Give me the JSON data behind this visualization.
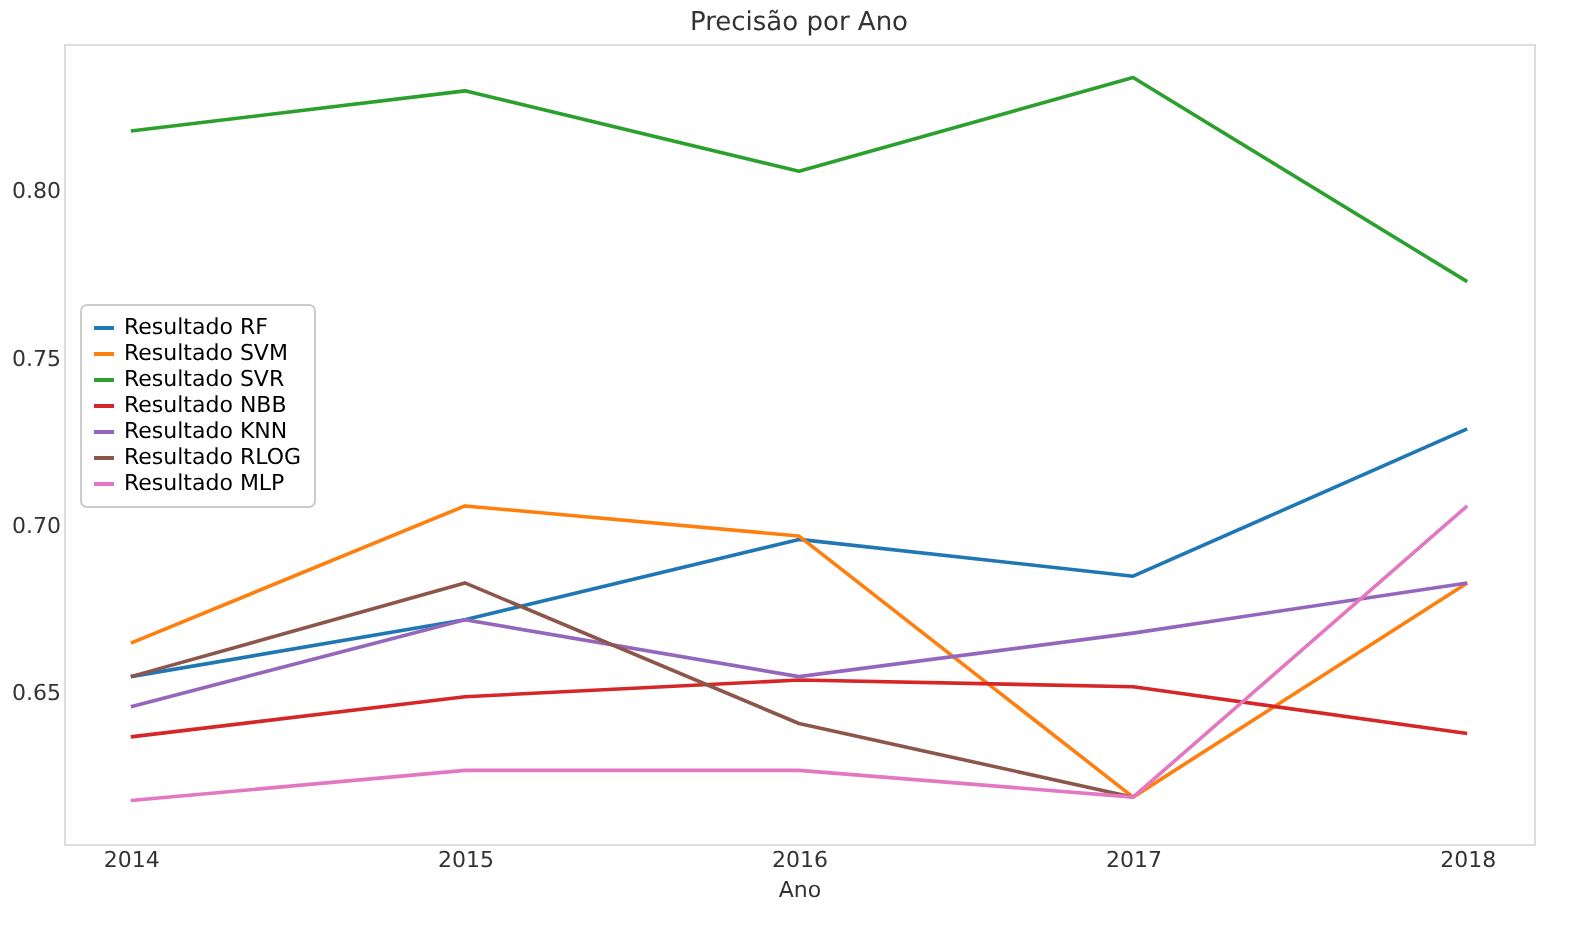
{
  "chart_data": {
    "type": "line",
    "title": "Precisão por Ano",
    "xlabel": "Ano",
    "x": [
      2014,
      2015,
      2016,
      2017,
      2018
    ],
    "xlim": [
      2013.8,
      2018.2
    ],
    "xticks": [
      2014,
      2015,
      2016,
      2017,
      2018
    ],
    "ylim": [
      0.605,
      0.844
    ],
    "yticks": [
      {
        "value": 0.65,
        "label": "0.65"
      },
      {
        "value": 0.7,
        "label": "0.70"
      },
      {
        "value": 0.75,
        "label": "0.75"
      },
      {
        "value": 0.8,
        "label": "0.80"
      }
    ],
    "grid": false,
    "legend": "center left",
    "marker": "none",
    "line_style": "solid",
    "series": [
      {
        "name": "Resultado RF",
        "color": "#1f77b4",
        "values": [
          0.655,
          0.672,
          0.696,
          0.685,
          0.729
        ]
      },
      {
        "name": "Resultado SVM",
        "color": "#ff7f0e",
        "values": [
          0.665,
          0.706,
          0.697,
          0.619,
          0.683
        ]
      },
      {
        "name": "Resultado SVR",
        "color": "#2ca02c",
        "values": [
          0.818,
          0.83,
          0.806,
          0.834,
          0.773
        ]
      },
      {
        "name": "Resultado NBB",
        "color": "#d62728",
        "values": [
          0.637,
          0.649,
          0.654,
          0.652,
          0.638
        ]
      },
      {
        "name": "Resultado KNN",
        "color": "#9467bd",
        "values": [
          0.646,
          0.672,
          0.655,
          0.668,
          0.683
        ]
      },
      {
        "name": "Resultado RLOG",
        "color": "#8c564b",
        "values": [
          0.655,
          0.683,
          0.641,
          0.619,
          null
        ]
      },
      {
        "name": "Resultado MLP",
        "color": "#e377c2",
        "values": [
          0.618,
          0.627,
          0.627,
          0.619,
          0.706
        ]
      }
    ]
  }
}
